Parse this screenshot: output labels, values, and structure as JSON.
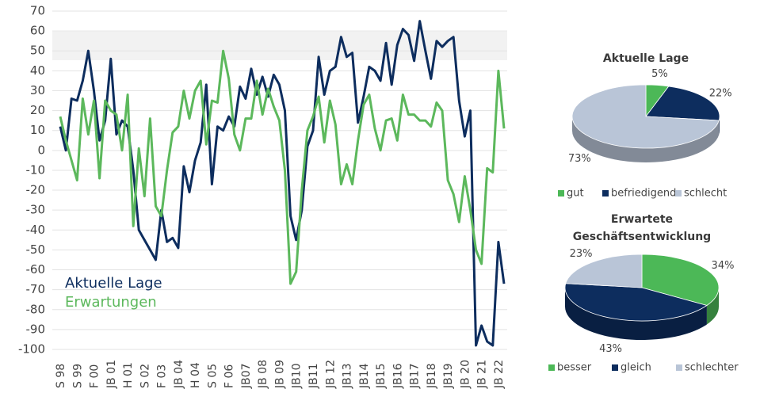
{
  "chart_data": [
    {
      "type": "line",
      "categories": [
        "S 98",
        null,
        null,
        "S 99",
        null,
        null,
        "F 00",
        null,
        null,
        "JB 01",
        null,
        null,
        "H 01",
        null,
        null,
        "S 02",
        null,
        null,
        "F 03",
        null,
        null,
        "JB 04",
        null,
        null,
        "H 04",
        null,
        null,
        "S 05",
        null,
        null,
        "F 06",
        null,
        null,
        "JB07",
        null,
        null,
        "JB 08",
        null,
        null,
        "JB 09",
        null,
        null,
        "JB10",
        null,
        null,
        "JB11",
        null,
        null,
        "JB 12",
        null,
        null,
        "JB13",
        null,
        null,
        "JB14",
        null,
        null,
        "JB15",
        null,
        null,
        "JB16",
        null,
        null,
        "JB17",
        null,
        null,
        "JB18",
        null,
        null,
        "JB19",
        null,
        null,
        "JB 20",
        null,
        null,
        "JB 21",
        null,
        null,
        "JB 22",
        null
      ],
      "series": [
        {
          "name": "Aktuelle Lage",
          "color": "#0d2d5e",
          "values": [
            12,
            0,
            26,
            25,
            35,
            50,
            30,
            5,
            15,
            46,
            8,
            15,
            12,
            -10,
            -40,
            -45,
            -50,
            -55,
            -30,
            -46,
            -44,
            -49,
            -8,
            -21,
            -5,
            4,
            33,
            -17,
            12,
            10,
            17,
            12,
            32,
            26,
            41,
            28,
            37,
            27,
            38,
            33,
            20,
            -33,
            -45,
            -30,
            2,
            10,
            47,
            28,
            40,
            42,
            57,
            47,
            49,
            14,
            27,
            42,
            40,
            35,
            54,
            33,
            53,
            61,
            58,
            45,
            65,
            50,
            36,
            55,
            52,
            55,
            57,
            25,
            7,
            20,
            -98,
            -88,
            -96,
            -98,
            -46,
            -67
          ]
        },
        {
          "name": "Erwartungen",
          "color": "#5cb85c",
          "values": [
            17,
            5,
            -5,
            -15,
            26,
            8,
            25,
            -14,
            25,
            20,
            18,
            0,
            28,
            -38,
            1,
            -23,
            16,
            -28,
            -33,
            -10,
            9,
            12,
            30,
            16,
            30,
            35,
            3,
            25,
            24,
            50,
            36,
            8,
            0,
            16,
            16,
            35,
            18,
            31,
            22,
            15,
            -10,
            -67,
            -61,
            -20,
            10,
            17,
            27,
            4,
            25,
            13,
            -17,
            -7,
            -17,
            5,
            23,
            28,
            11,
            0,
            15,
            16,
            5,
            28,
            18,
            18,
            15,
            15,
            12,
            24,
            20,
            -15,
            -22,
            -36,
            -13,
            -30,
            -50,
            -57,
            -9,
            -11,
            40,
            11
          ]
        }
      ],
      "ylim": [
        -100,
        70
      ],
      "yticks": [
        -100,
        -90,
        -80,
        -70,
        -60,
        -50,
        -40,
        -30,
        -20,
        -10,
        0,
        10,
        20,
        30,
        40,
        50,
        60,
        70
      ],
      "grid": true
    },
    {
      "type": "pie",
      "title": "Aktuelle Lage",
      "categories": [
        "gut",
        "befriedigend",
        "schlecht"
      ],
      "values": [
        5,
        22,
        73
      ],
      "value_labels": [
        "5%",
        "22%",
        "73%"
      ],
      "colors": [
        "#4cb857",
        "#0d2d5e",
        "#b9c5d7"
      ]
    },
    {
      "type": "pie",
      "title": "Erwartete Geschäftsentwicklung",
      "categories": [
        "besser",
        "gleich",
        "schlechter"
      ],
      "values": [
        34,
        43,
        23
      ],
      "value_labels": [
        "34%",
        "43%",
        "23%"
      ],
      "colors": [
        "#4cb857",
        "#0d2d5e",
        "#b9c5d7"
      ]
    }
  ]
}
